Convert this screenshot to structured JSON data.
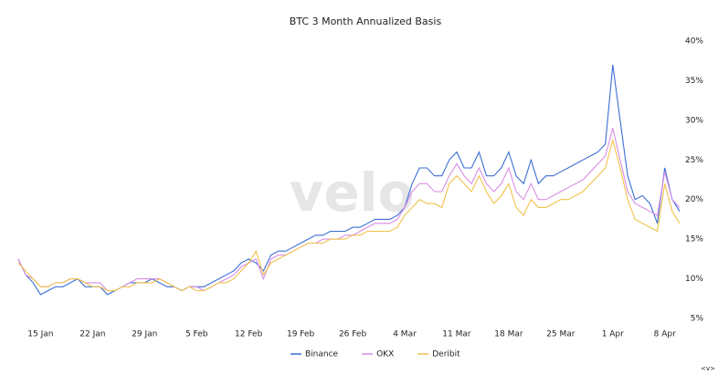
{
  "chart_data": {
    "type": "line",
    "title": "BTC 3 Month Annualized Basis",
    "watermark": "velo",
    "footer_mark": "<v>",
    "categories": [
      null,
      null,
      null,
      "15 Jan",
      null,
      null,
      null,
      null,
      null,
      null,
      "22 Jan",
      null,
      null,
      null,
      null,
      null,
      null,
      "29 Jan",
      null,
      null,
      null,
      null,
      null,
      null,
      "5 Feb",
      null,
      null,
      null,
      null,
      null,
      null,
      "12 Feb",
      null,
      null,
      null,
      null,
      null,
      null,
      "19 Feb",
      null,
      null,
      null,
      null,
      null,
      null,
      "26 Feb",
      null,
      null,
      null,
      null,
      null,
      null,
      "4 Mar",
      null,
      null,
      null,
      null,
      null,
      null,
      "11 Mar",
      null,
      null,
      null,
      null,
      null,
      null,
      "18 Mar",
      null,
      null,
      null,
      null,
      null,
      null,
      "25 Mar",
      null,
      null,
      null,
      null,
      null,
      null,
      "1 Apr",
      null,
      null,
      null,
      null,
      null,
      null,
      "8 Apr",
      null,
      null
    ],
    "series": [
      {
        "name": "Binance",
        "color": "#3b6fd4",
        "values": [
          12.5,
          10.5,
          9.5,
          8,
          8.5,
          9,
          9,
          9.5,
          10,
          9,
          9,
          9,
          8,
          8.5,
          9,
          9.5,
          9.5,
          9.5,
          10,
          9.5,
          9,
          9,
          8.5,
          9,
          9,
          9,
          9.5,
          10,
          10.5,
          11,
          12,
          12.5,
          12,
          11,
          13,
          13.5,
          13.5,
          14,
          14.5,
          15,
          15.5,
          15.5,
          16,
          16,
          16,
          16.5,
          16.5,
          17,
          17.5,
          17.5,
          17.5,
          18,
          19,
          22,
          24,
          24,
          23,
          23,
          25,
          26,
          24,
          24,
          26,
          23,
          23,
          24,
          26,
          23,
          22,
          25,
          22,
          23,
          23,
          23.5,
          24,
          24.5,
          25,
          25.5,
          26,
          27,
          37,
          30,
          23,
          20,
          20.5,
          19.5,
          17,
          24,
          20,
          18.5
        ]
      },
      {
        "name": "OKX",
        "color": "#d98ce6",
        "values": [
          12.5,
          10.5,
          10,
          9,
          9,
          9.5,
          9.5,
          10,
          10,
          9.5,
          9.5,
          9.5,
          8.5,
          8.5,
          9,
          9.5,
          10,
          10,
          10,
          10,
          9.5,
          9,
          8.5,
          9,
          9,
          8.5,
          9,
          9.5,
          10,
          10.5,
          11.5,
          12,
          12.5,
          10,
          12.5,
          13,
          13,
          13.5,
          14,
          14.5,
          14.5,
          15,
          15,
          15,
          15.5,
          15.5,
          16,
          16.5,
          17,
          17,
          17,
          17.5,
          19,
          21,
          22,
          22,
          21,
          21,
          23,
          24.5,
          23,
          22,
          24,
          22,
          21,
          22,
          24,
          21,
          20,
          22,
          20,
          20,
          20.5,
          21,
          21.5,
          22,
          22.5,
          23.5,
          24.5,
          25.5,
          29,
          25,
          21,
          19.5,
          19,
          18.5,
          18,
          23.5,
          20,
          19
        ]
      },
      {
        "name": "Deribit",
        "color": "#f0c24a",
        "values": [
          12,
          11,
          10,
          9,
          9,
          9.5,
          9.5,
          10,
          10,
          9.5,
          9,
          9,
          8.5,
          8.5,
          9,
          9,
          9.5,
          9.5,
          9.5,
          10,
          9.5,
          9,
          8.5,
          9,
          8.5,
          8.5,
          9,
          9.5,
          9.5,
          10,
          11,
          12,
          13.5,
          10.5,
          12,
          12.5,
          13,
          13.5,
          14,
          14.5,
          14.5,
          14.5,
          15,
          15,
          15,
          15.5,
          15.5,
          16,
          16,
          16,
          16,
          16.5,
          18,
          19,
          20,
          19.5,
          19.5,
          19,
          22,
          23,
          22,
          21,
          23,
          21,
          19.5,
          20.5,
          22,
          19,
          18,
          20,
          19,
          19,
          19.5,
          20,
          20,
          20.5,
          21,
          22,
          23,
          24,
          27.5,
          24,
          20,
          17.5,
          17,
          16.5,
          16,
          22,
          18.5,
          17
        ]
      }
    ],
    "ylim": [
      5,
      40
    ],
    "yticks": [
      {
        "value": 5,
        "label": "5%"
      },
      {
        "value": 10,
        "label": "10%"
      },
      {
        "value": 15,
        "label": "15%"
      },
      {
        "value": 20,
        "label": "20%"
      },
      {
        "value": 25,
        "label": "25%"
      },
      {
        "value": 30,
        "label": "30%"
      },
      {
        "value": 35,
        "label": "35%"
      },
      {
        "value": 40,
        "label": "40%"
      }
    ],
    "y_axis_side": "right",
    "legend": "bottom"
  }
}
